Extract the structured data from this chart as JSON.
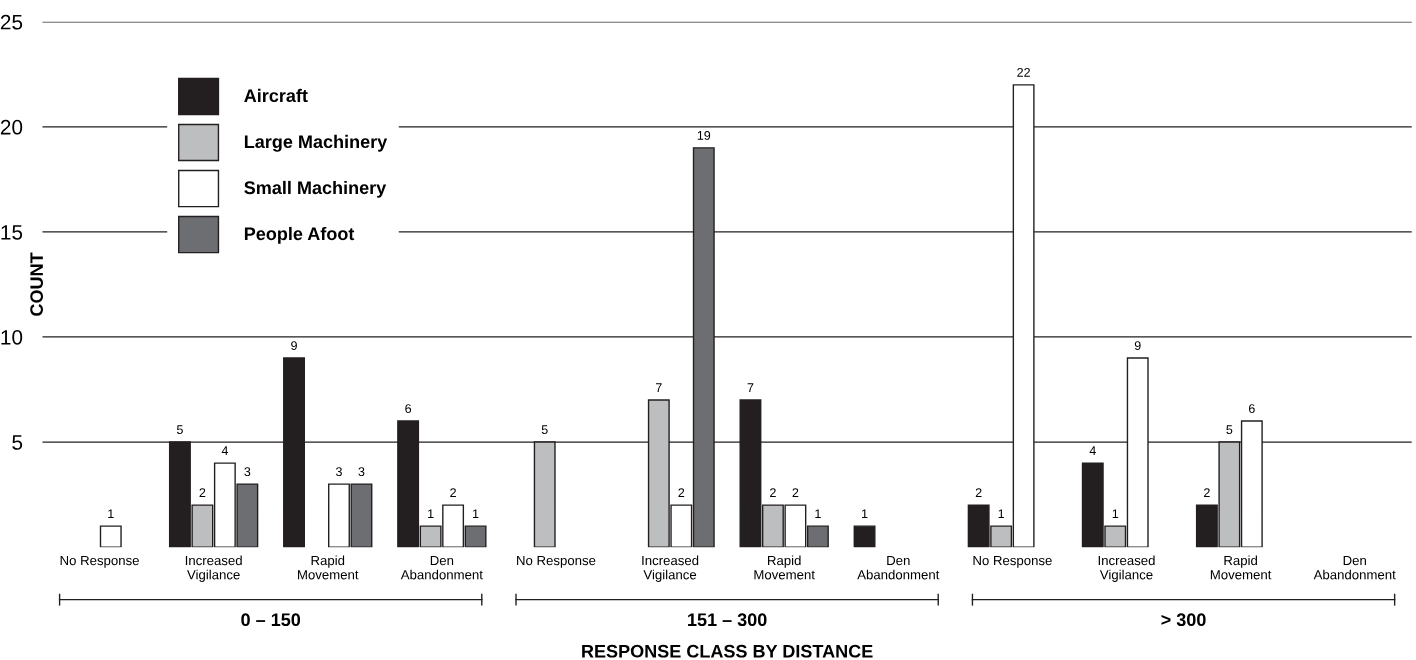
{
  "chart_data": {
    "type": "bar",
    "xlabel": "RESPONSE CLASS BY DISTANCE",
    "ylabel": "COUNT",
    "categories": [
      "No Response",
      "Increased\nVigilance",
      "Rapid\nMovement",
      "Den\nAbandonment",
      "No Response",
      "Increased\nVigilance",
      "Rapid\nMovement",
      "Den\nAbandonment",
      "No Response",
      "Increased\nVigilance",
      "Rapid\nMovement",
      "Den\nAbandonment"
    ],
    "series": [
      {
        "name": "Aircraft",
        "color": "#231f20",
        "values": [
          null,
          5,
          9,
          6,
          null,
          null,
          7,
          1,
          2,
          4,
          2,
          null
        ]
      },
      {
        "name": "Large Machinery",
        "color": "#bcbec0",
        "values": [
          null,
          2,
          null,
          1,
          5,
          7,
          2,
          null,
          1,
          1,
          5,
          null
        ]
      },
      {
        "name": "Small Machinery",
        "color": "#ffffff",
        "values": [
          1,
          4,
          3,
          2,
          null,
          2,
          2,
          null,
          22,
          9,
          6,
          null
        ]
      },
      {
        "name": "People Afoot",
        "color": "#6d6e71",
        "values": [
          null,
          3,
          3,
          1,
          null,
          19,
          1,
          null,
          null,
          null,
          null,
          null
        ]
      }
    ],
    "ylim": [
      0,
      25
    ],
    "yticks": [
      5,
      10,
      15,
      20,
      25
    ],
    "grid": "y",
    "legend": "top left",
    "data_labels": true,
    "annotations": [
      "0 – 150",
      "151 – 300",
      "> 300"
    ]
  }
}
